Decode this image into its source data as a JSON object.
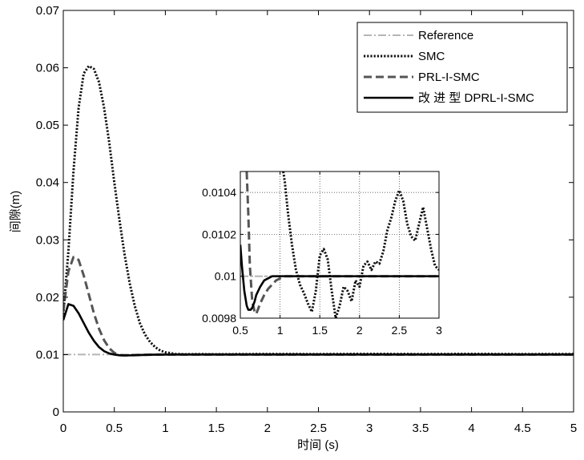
{
  "chart_data": [
    {
      "type": "line",
      "xlabel": "时间 (s)",
      "ylabel": "间隙(m)",
      "xlim": [
        0,
        5
      ],
      "ylim": [
        0,
        0.07
      ],
      "xticks": [
        0,
        0.5,
        1,
        1.5,
        2,
        2.5,
        3,
        3.5,
        4,
        4.5,
        5
      ],
      "xtick_labels": [
        "0",
        "0.5",
        "1",
        "1.5",
        "2",
        "2.5",
        "3",
        "3.5",
        "4",
        "4.5",
        "5"
      ],
      "yticks": [
        0,
        0.01,
        0.02,
        0.03,
        0.04,
        0.05,
        0.06,
        0.07
      ],
      "ytick_labels": [
        "0",
        "0.01",
        "0.02",
        "0.03",
        "0.04",
        "0.05",
        "0.06",
        "0.07"
      ],
      "grid": false,
      "legend_position": "top-right",
      "series": [
        {
          "name": "Reference",
          "style": "dash-dot",
          "color": "#b5b5b5",
          "x": [
            0,
            5
          ],
          "y": [
            0.01,
            0.01
          ]
        },
        {
          "name": "SMC",
          "style": "dotted",
          "color": "#111111",
          "x": [
            0,
            0.05,
            0.1,
            0.15,
            0.2,
            0.25,
            0.3,
            0.35,
            0.4,
            0.45,
            0.5,
            0.55,
            0.6,
            0.65,
            0.7,
            0.75,
            0.8,
            0.85,
            0.9,
            0.95,
            1.0,
            1.05,
            1.1,
            1.2,
            1.3,
            1.5,
            2.0,
            2.5,
            3.0,
            3.5,
            4.0,
            4.5,
            5.0
          ],
          "y": [
            0.017,
            0.028,
            0.042,
            0.053,
            0.059,
            0.0603,
            0.0598,
            0.0575,
            0.053,
            0.047,
            0.04,
            0.0335,
            0.0275,
            0.0225,
            0.0185,
            0.0155,
            0.0135,
            0.0122,
            0.0113,
            0.0107,
            0.0104,
            0.01025,
            0.0101,
            0.01005,
            0.01008,
            0.01005,
            0.0101,
            0.01008,
            0.01012,
            0.01008,
            0.01012,
            0.01008,
            0.0101
          ]
        },
        {
          "name": "PRL-I-SMC",
          "style": "dashed",
          "color": "#555555",
          "x": [
            0,
            0.05,
            0.1,
            0.15,
            0.2,
            0.25,
            0.3,
            0.35,
            0.4,
            0.45,
            0.5,
            0.55,
            0.6,
            0.65,
            0.7,
            0.8,
            0.9,
            1.0,
            1.5,
            2.0,
            3.0,
            4.0,
            5.0
          ],
          "y": [
            0.0175,
            0.0245,
            0.027,
            0.0265,
            0.0238,
            0.0205,
            0.0172,
            0.0145,
            0.0125,
            0.0111,
            0.0103,
            0.0099,
            0.00985,
            0.00988,
            0.00992,
            0.00996,
            0.00998,
            0.01,
            0.01,
            0.01,
            0.01,
            0.01,
            0.01
          ]
        },
        {
          "name": "改 进 型 DPRL-I-SMC",
          "style": "solid",
          "color": "#000000",
          "x": [
            0,
            0.05,
            0.1,
            0.15,
            0.2,
            0.25,
            0.3,
            0.35,
            0.4,
            0.45,
            0.5,
            0.55,
            0.6,
            0.7,
            0.8,
            0.9,
            1.0,
            1.5,
            2.0,
            3.0,
            4.0,
            5.0
          ],
          "y": [
            0.016,
            0.0188,
            0.0185,
            0.0172,
            0.0155,
            0.0138,
            0.0124,
            0.0113,
            0.0106,
            0.0102,
            0.01,
            0.00988,
            0.00985,
            0.00988,
            0.00994,
            0.00998,
            0.01,
            0.01,
            0.01,
            0.01,
            0.01,
            0.01
          ]
        }
      ]
    },
    {
      "type": "line",
      "xlim": [
        0.5,
        3
      ],
      "ylim": [
        0.0098,
        0.0105
      ],
      "xticks": [
        0.5,
        1,
        1.5,
        2,
        2.5,
        3
      ],
      "xtick_labels": [
        "0.5",
        "1",
        "1.5",
        "2",
        "2.5",
        "3"
      ],
      "yticks": [
        0.0098,
        0.01,
        0.0102,
        0.0104
      ],
      "ytick_labels": [
        "0.0098",
        "0.01",
        "0.0102",
        "0.0104"
      ],
      "grid": true,
      "series": [
        {
          "name": "Reference",
          "style": "dash-dot",
          "color": "#b5b5b5",
          "x": [
            0.5,
            3
          ],
          "y": [
            0.01,
            0.01
          ]
        },
        {
          "name": "SMC",
          "style": "dotted",
          "color": "#111111",
          "x": [
            1.04,
            1.06,
            1.1,
            1.15,
            1.2,
            1.25,
            1.3,
            1.35,
            1.4,
            1.45,
            1.5,
            1.55,
            1.6,
            1.65,
            1.7,
            1.75,
            1.8,
            1.85,
            1.9,
            1.95,
            2.0,
            2.05,
            2.1,
            2.15,
            2.2,
            2.25,
            2.3,
            2.35,
            2.4,
            2.45,
            2.5,
            2.55,
            2.6,
            2.65,
            2.7,
            2.75,
            2.8,
            2.85,
            2.9,
            2.95,
            3.0
          ],
          "y": [
            0.0105,
            0.01045,
            0.0103,
            0.01015,
            0.01003,
            0.00996,
            0.00992,
            0.00987,
            0.00983,
            0.00993,
            0.0101,
            0.01013,
            0.01008,
            0.00993,
            0.0098,
            0.00986,
            0.00995,
            0.00993,
            0.00988,
            0.00998,
            0.00995,
            0.01005,
            0.01007,
            0.01003,
            0.01007,
            0.01006,
            0.01012,
            0.01022,
            0.01028,
            0.01036,
            0.01041,
            0.01036,
            0.01025,
            0.01019,
            0.01017,
            0.01025,
            0.01033,
            0.01023,
            0.01013,
            0.01005,
            0.01003
          ]
        },
        {
          "name": "PRL-I-SMC",
          "style": "dashed",
          "color": "#555555",
          "x": [
            0.58,
            0.6,
            0.62,
            0.65,
            0.68,
            0.7,
            0.72,
            0.75,
            0.8,
            0.85,
            0.9,
            0.95,
            1.0,
            1.05,
            1.1,
            1.2,
            1.5,
            2.0,
            2.5,
            3.0
          ],
          "y": [
            0.0105,
            0.0103,
            0.01005,
            0.00988,
            0.00983,
            0.00982,
            0.00984,
            0.00987,
            0.00991,
            0.00994,
            0.00996,
            0.00998,
            0.00999,
            0.01,
            0.01,
            0.01,
            0.01,
            0.01,
            0.01,
            0.01
          ]
        },
        {
          "name": "改 进 型 DPRL-I-SMC",
          "style": "solid",
          "color": "#000000",
          "x": [
            0.5,
            0.52,
            0.55,
            0.58,
            0.6,
            0.63,
            0.65,
            0.68,
            0.7,
            0.75,
            0.8,
            0.85,
            0.9,
            0.95,
            1.0,
            1.1,
            1.2,
            1.5,
            2.0,
            2.5,
            3.0
          ],
          "y": [
            0.01015,
            0.01005,
            0.00993,
            0.00986,
            0.00984,
            0.00984,
            0.00985,
            0.00988,
            0.00991,
            0.00995,
            0.00998,
            0.00999,
            0.01,
            0.01,
            0.01,
            0.01,
            0.01,
            0.01,
            0.01,
            0.01,
            0.01
          ]
        }
      ]
    }
  ]
}
